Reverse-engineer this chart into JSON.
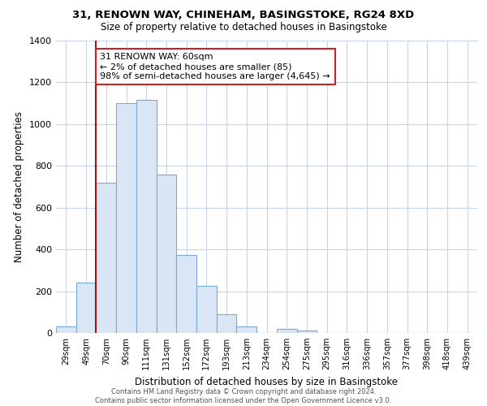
{
  "title": "31, RENOWN WAY, CHINEHAM, BASINGSTOKE, RG24 8XD",
  "subtitle": "Size of property relative to detached houses in Basingstoke",
  "xlabel": "Distribution of detached houses by size in Basingstoke",
  "ylabel": "Number of detached properties",
  "bar_color": "#dae6f5",
  "bar_edge_color": "#7aaad4",
  "vline_color": "#aa1111",
  "vline_x": 1.5,
  "categories": [
    "29sqm",
    "49sqm",
    "70sqm",
    "90sqm",
    "111sqm",
    "131sqm",
    "152sqm",
    "172sqm",
    "193sqm",
    "213sqm",
    "234sqm",
    "254sqm",
    "275sqm",
    "295sqm",
    "316sqm",
    "336sqm",
    "357sqm",
    "377sqm",
    "398sqm",
    "418sqm",
    "439sqm"
  ],
  "values": [
    30,
    240,
    720,
    1100,
    1115,
    760,
    375,
    225,
    90,
    30,
    0,
    20,
    10,
    0,
    0,
    0,
    0,
    0,
    0,
    0,
    0
  ],
  "ylim": [
    0,
    1400
  ],
  "yticks": [
    0,
    200,
    400,
    600,
    800,
    1000,
    1200,
    1400
  ],
  "annotation_text": "31 RENOWN WAY: 60sqm\n← 2% of detached houses are smaller (85)\n98% of semi-detached houses are larger (4,645) →",
  "annotation_box_color": "#ffffff",
  "annotation_border_color": "#cc2222",
  "footer_text": "Contains HM Land Registry data © Crown copyright and database right 2024.\nContains public sector information licensed under the Open Government Licence v3.0.",
  "background_color": "#ffffff",
  "grid_color": "#c8d4e8"
}
